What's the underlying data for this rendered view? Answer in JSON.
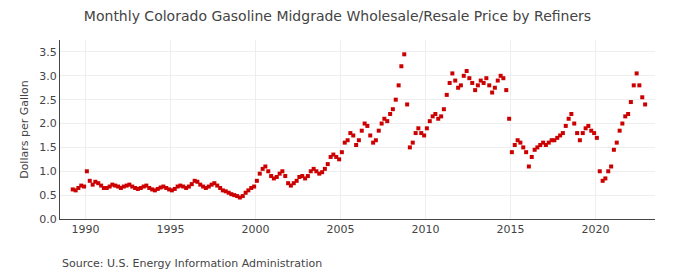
{
  "chart_data": {
    "type": "scatter",
    "title": "Monthly Colorado Gasoline Midgrade Wholesale/Resale Price by Refiners",
    "ylabel": "Dollars per Gallon",
    "annotations": [
      "Source: U.S. Energy Information Administration"
    ],
    "color": "#cc0000",
    "marker": "square",
    "grid": true,
    "xlim": [
      1988.5,
      2023.5
    ],
    "xticks": [
      1990,
      1995,
      2000,
      2005,
      2010,
      2015,
      2020
    ],
    "ylim": [
      0.0,
      3.75
    ],
    "yticks": [
      {
        "value": 0.0,
        "label": "0.0"
      },
      0.5,
      {
        "value": 1.0,
        "label": "1.0"
      },
      1.5,
      {
        "value": 2.0,
        "label": "2.0"
      },
      2.5,
      {
        "value": 3.0,
        "label": "3.0"
      },
      3.5
    ],
    "x": [
      1989.25,
      1989.42,
      1989.58,
      1989.75,
      1989.92,
      1990.08,
      1990.25,
      1990.42,
      1990.58,
      1990.75,
      1990.92,
      1991.08,
      1991.25,
      1991.42,
      1991.58,
      1991.75,
      1991.92,
      1992.08,
      1992.25,
      1992.42,
      1992.58,
      1992.75,
      1992.92,
      1993.08,
      1993.25,
      1993.42,
      1993.58,
      1993.75,
      1993.92,
      1994.08,
      1994.25,
      1994.42,
      1994.58,
      1994.75,
      1994.92,
      1995.08,
      1995.25,
      1995.42,
      1995.58,
      1995.75,
      1995.92,
      1996.08,
      1996.25,
      1996.42,
      1996.58,
      1996.75,
      1996.92,
      1997.08,
      1997.25,
      1997.42,
      1997.58,
      1997.75,
      1997.92,
      1998.08,
      1998.25,
      1998.42,
      1998.58,
      1998.75,
      1998.92,
      1999.08,
      1999.25,
      1999.42,
      1999.58,
      1999.75,
      1999.92,
      2000.08,
      2000.25,
      2000.42,
      2000.58,
      2000.75,
      2000.92,
      2001.08,
      2001.25,
      2001.42,
      2001.58,
      2001.75,
      2001.92,
      2002.08,
      2002.25,
      2002.42,
      2002.58,
      2002.75,
      2002.92,
      2003.08,
      2003.25,
      2003.42,
      2003.58,
      2003.75,
      2003.92,
      2004.08,
      2004.25,
      2004.42,
      2004.58,
      2004.75,
      2004.92,
      2005.08,
      2005.25,
      2005.42,
      2005.58,
      2005.75,
      2005.92,
      2006.08,
      2006.25,
      2006.42,
      2006.58,
      2006.75,
      2006.92,
      2007.08,
      2007.25,
      2007.42,
      2007.58,
      2007.75,
      2007.92,
      2008.08,
      2008.25,
      2008.42,
      2008.58,
      2008.75,
      2008.92,
      2009.08,
      2009.25,
      2009.42,
      2009.58,
      2009.75,
      2009.92,
      2010.08,
      2010.25,
      2010.42,
      2010.58,
      2010.75,
      2010.92,
      2011.08,
      2011.25,
      2011.42,
      2011.58,
      2011.75,
      2011.92,
      2012.08,
      2012.25,
      2012.42,
      2012.58,
      2012.75,
      2012.92,
      2013.08,
      2013.25,
      2013.42,
      2013.58,
      2013.75,
      2013.92,
      2014.08,
      2014.25,
      2014.42,
      2014.58,
      2014.75,
      2014.92,
      2015.08,
      2015.25,
      2015.42,
      2015.58,
      2015.75,
      2015.92,
      2016.08,
      2016.25,
      2016.42,
      2016.58,
      2016.75,
      2016.92,
      2017.08,
      2017.25,
      2017.42,
      2017.58,
      2017.75,
      2017.92,
      2018.08,
      2018.25,
      2018.42,
      2018.58,
      2018.75,
      2018.92,
      2019.08,
      2019.25,
      2019.42,
      2019.58,
      2019.75,
      2019.92,
      2020.08,
      2020.25,
      2020.42,
      2020.58,
      2020.75,
      2020.92,
      2021.08,
      2021.25,
      2021.42,
      2021.58,
      2021.75,
      2021.92,
      2022.08,
      2022.25,
      2022.42,
      2022.58,
      2022.75,
      2022.92
    ],
    "values": [
      0.62,
      0.6,
      0.65,
      0.7,
      0.68,
      1.0,
      0.8,
      0.72,
      0.78,
      0.75,
      0.7,
      0.65,
      0.65,
      0.68,
      0.72,
      0.7,
      0.68,
      0.65,
      0.68,
      0.7,
      0.72,
      0.68,
      0.65,
      0.63,
      0.65,
      0.68,
      0.7,
      0.65,
      0.62,
      0.6,
      0.63,
      0.66,
      0.68,
      0.65,
      0.62,
      0.6,
      0.63,
      0.68,
      0.7,
      0.68,
      0.65,
      0.68,
      0.73,
      0.8,
      0.78,
      0.72,
      0.68,
      0.65,
      0.68,
      0.72,
      0.75,
      0.7,
      0.65,
      0.6,
      0.58,
      0.55,
      0.52,
      0.5,
      0.48,
      0.45,
      0.48,
      0.55,
      0.6,
      0.65,
      0.68,
      0.8,
      0.95,
      1.05,
      1.1,
      1.0,
      0.9,
      0.85,
      0.88,
      0.95,
      1.0,
      0.9,
      0.75,
      0.7,
      0.75,
      0.8,
      0.88,
      0.9,
      0.85,
      0.9,
      1.0,
      1.05,
      1.0,
      0.95,
      0.98,
      1.05,
      1.15,
      1.3,
      1.35,
      1.3,
      1.25,
      1.4,
      1.6,
      1.65,
      1.8,
      1.75,
      1.55,
      1.65,
      1.85,
      2.0,
      1.95,
      1.75,
      1.6,
      1.65,
      1.85,
      2.0,
      2.1,
      2.05,
      2.2,
      2.3,
      2.5,
      2.8,
      3.2,
      3.45,
      2.4,
      1.5,
      1.6,
      1.8,
      1.9,
      1.8,
      1.75,
      1.9,
      2.05,
      2.15,
      2.2,
      2.1,
      2.15,
      2.3,
      2.6,
      2.85,
      3.05,
      2.9,
      2.75,
      2.8,
      3.0,
      3.1,
      2.95,
      2.85,
      2.7,
      2.8,
      2.9,
      2.85,
      2.95,
      2.8,
      2.65,
      2.75,
      2.9,
      3.0,
      2.95,
      2.7,
      2.1,
      1.4,
      1.55,
      1.65,
      1.6,
      1.5,
      1.4,
      1.1,
      1.3,
      1.45,
      1.5,
      1.55,
      1.6,
      1.55,
      1.6,
      1.65,
      1.65,
      1.7,
      1.75,
      1.8,
      1.95,
      2.1,
      2.2,
      2.0,
      1.8,
      1.65,
      1.8,
      1.9,
      1.95,
      1.85,
      1.8,
      1.7,
      1.0,
      0.8,
      0.85,
      1.0,
      1.1,
      1.45,
      1.6,
      1.85,
      2.0,
      2.15,
      2.2,
      2.45,
      2.8,
      3.05,
      2.8,
      2.55,
      2.4
    ]
  }
}
